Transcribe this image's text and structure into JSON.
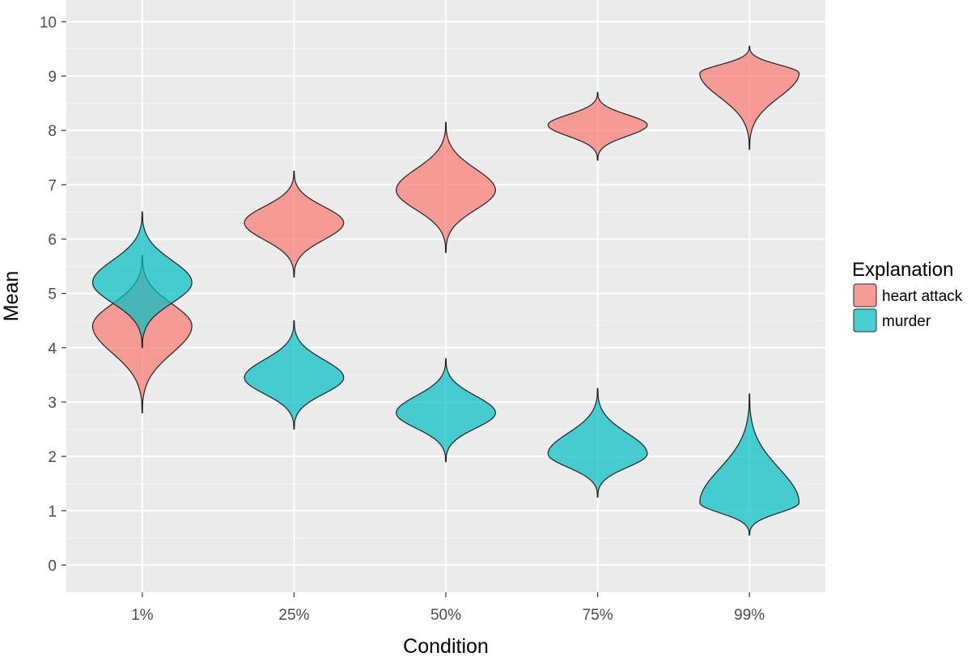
{
  "chart_data": {
    "type": "violin",
    "xlabel": "Condition",
    "ylabel": "Mean",
    "categories": [
      "1%",
      "25%",
      "50%",
      "75%",
      "99%"
    ],
    "ylim": [
      -0.5,
      10.4
    ],
    "yticks": [
      0,
      1,
      2,
      3,
      4,
      5,
      6,
      7,
      8,
      9,
      10
    ],
    "grid": true,
    "legend": {
      "title": "Explanation",
      "placement": "right"
    },
    "series": [
      {
        "name": "heart attack",
        "color": "#F8766D",
        "violins": [
          {
            "category": "1%",
            "center": 4.4,
            "min": 2.8,
            "max": 5.7
          },
          {
            "category": "25%",
            "center": 6.3,
            "min": 5.3,
            "max": 7.25
          },
          {
            "category": "50%",
            "center": 6.9,
            "min": 5.75,
            "max": 8.15
          },
          {
            "category": "75%",
            "center": 8.1,
            "min": 7.45,
            "max": 8.7
          },
          {
            "category": "99%",
            "center": 9.05,
            "min": 7.65,
            "max": 9.55
          }
        ]
      },
      {
        "name": "murder",
        "color": "#00BFC4",
        "violins": [
          {
            "category": "1%",
            "center": 5.2,
            "min": 4.0,
            "max": 6.5
          },
          {
            "category": "25%",
            "center": 3.45,
            "min": 2.5,
            "max": 4.5
          },
          {
            "category": "50%",
            "center": 2.8,
            "min": 1.9,
            "max": 3.8
          },
          {
            "category": "75%",
            "center": 2.05,
            "min": 1.25,
            "max": 3.25
          },
          {
            "category": "99%",
            "center": 1.15,
            "min": 0.55,
            "max": 3.15
          }
        ]
      }
    ]
  }
}
